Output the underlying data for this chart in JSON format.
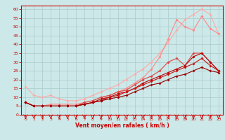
{
  "bg_color": "#cce8e8",
  "grid_color": "#aacccc",
  "x_label": "Vent moyen/en rafales ( km/h )",
  "x_ticks": [
    0,
    1,
    2,
    3,
    4,
    5,
    6,
    7,
    8,
    9,
    10,
    11,
    12,
    13,
    14,
    15,
    16,
    17,
    18,
    19,
    20,
    21,
    22,
    23
  ],
  "y_ticks": [
    0,
    5,
    10,
    15,
    20,
    25,
    30,
    35,
    40,
    45,
    50,
    55,
    60
  ],
  "xlim": [
    -0.5,
    23.5
  ],
  "ylim": [
    0,
    62
  ],
  "series": [
    {
      "color": "#ffaaaa",
      "x": [
        0,
        1,
        2,
        3,
        4,
        5,
        6,
        7,
        8,
        9,
        10,
        11,
        12,
        13,
        14,
        15,
        16,
        17,
        18,
        19,
        20,
        21,
        22,
        23
      ],
      "y": [
        16,
        11,
        10,
        11,
        9,
        8,
        8,
        9,
        11,
        13,
        15,
        17,
        20,
        23,
        26,
        30,
        35,
        41,
        48,
        54,
        57,
        60,
        57,
        46
      ]
    },
    {
      "color": "#ff8888",
      "x": [
        0,
        1,
        2,
        3,
        4,
        5,
        6,
        7,
        8,
        9,
        10,
        11,
        12,
        13,
        14,
        15,
        16,
        17,
        18,
        19,
        20,
        21,
        22,
        23
      ],
      "y": [
        7,
        5,
        5,
        6,
        6,
        6,
        6,
        7,
        8,
        10,
        11,
        13,
        15,
        18,
        21,
        26,
        33,
        43,
        54,
        50,
        48,
        56,
        49,
        46
      ]
    },
    {
      "color": "#dd4444",
      "x": [
        0,
        1,
        2,
        3,
        4,
        5,
        6,
        7,
        8,
        9,
        10,
        11,
        12,
        13,
        14,
        15,
        16,
        17,
        18,
        19,
        20,
        21,
        22,
        23
      ],
      "y": [
        7,
        5,
        5,
        5,
        5,
        5,
        5,
        7,
        8,
        10,
        11,
        13,
        14,
        17,
        20,
        22,
        25,
        30,
        32,
        28,
        35,
        35,
        30,
        25
      ]
    },
    {
      "color": "#bb0000",
      "x": [
        0,
        1,
        2,
        3,
        4,
        5,
        6,
        7,
        8,
        9,
        10,
        11,
        12,
        13,
        14,
        15,
        16,
        17,
        18,
        19,
        20,
        21,
        22,
        23
      ],
      "y": [
        7,
        5,
        5,
        5,
        5,
        5,
        5,
        6,
        7,
        9,
        10,
        12,
        13,
        15,
        18,
        20,
        22,
        24,
        26,
        28,
        33,
        35,
        30,
        25
      ]
    },
    {
      "color": "#cc1111",
      "x": [
        0,
        1,
        2,
        3,
        4,
        5,
        6,
        7,
        8,
        9,
        10,
        11,
        12,
        13,
        14,
        15,
        16,
        17,
        18,
        19,
        20,
        21,
        22,
        23
      ],
      "y": [
        7,
        5,
        5,
        5,
        5,
        5,
        5,
        6,
        7,
        8,
        10,
        11,
        13,
        15,
        17,
        19,
        21,
        23,
        25,
        27,
        29,
        32,
        28,
        25
      ]
    },
    {
      "color": "#990000",
      "x": [
        0,
        1,
        2,
        3,
        4,
        5,
        6,
        7,
        8,
        9,
        10,
        11,
        12,
        13,
        14,
        15,
        16,
        17,
        18,
        19,
        20,
        21,
        22,
        23
      ],
      "y": [
        7,
        5,
        5,
        5,
        5,
        5,
        5,
        6,
        7,
        8,
        9,
        10,
        11,
        13,
        15,
        17,
        18,
        20,
        22,
        23,
        25,
        27,
        25,
        24
      ]
    }
  ],
  "axis_label_color": "#cc0000",
  "tick_color": "#cc0000",
  "spine_color": "#cc0000"
}
